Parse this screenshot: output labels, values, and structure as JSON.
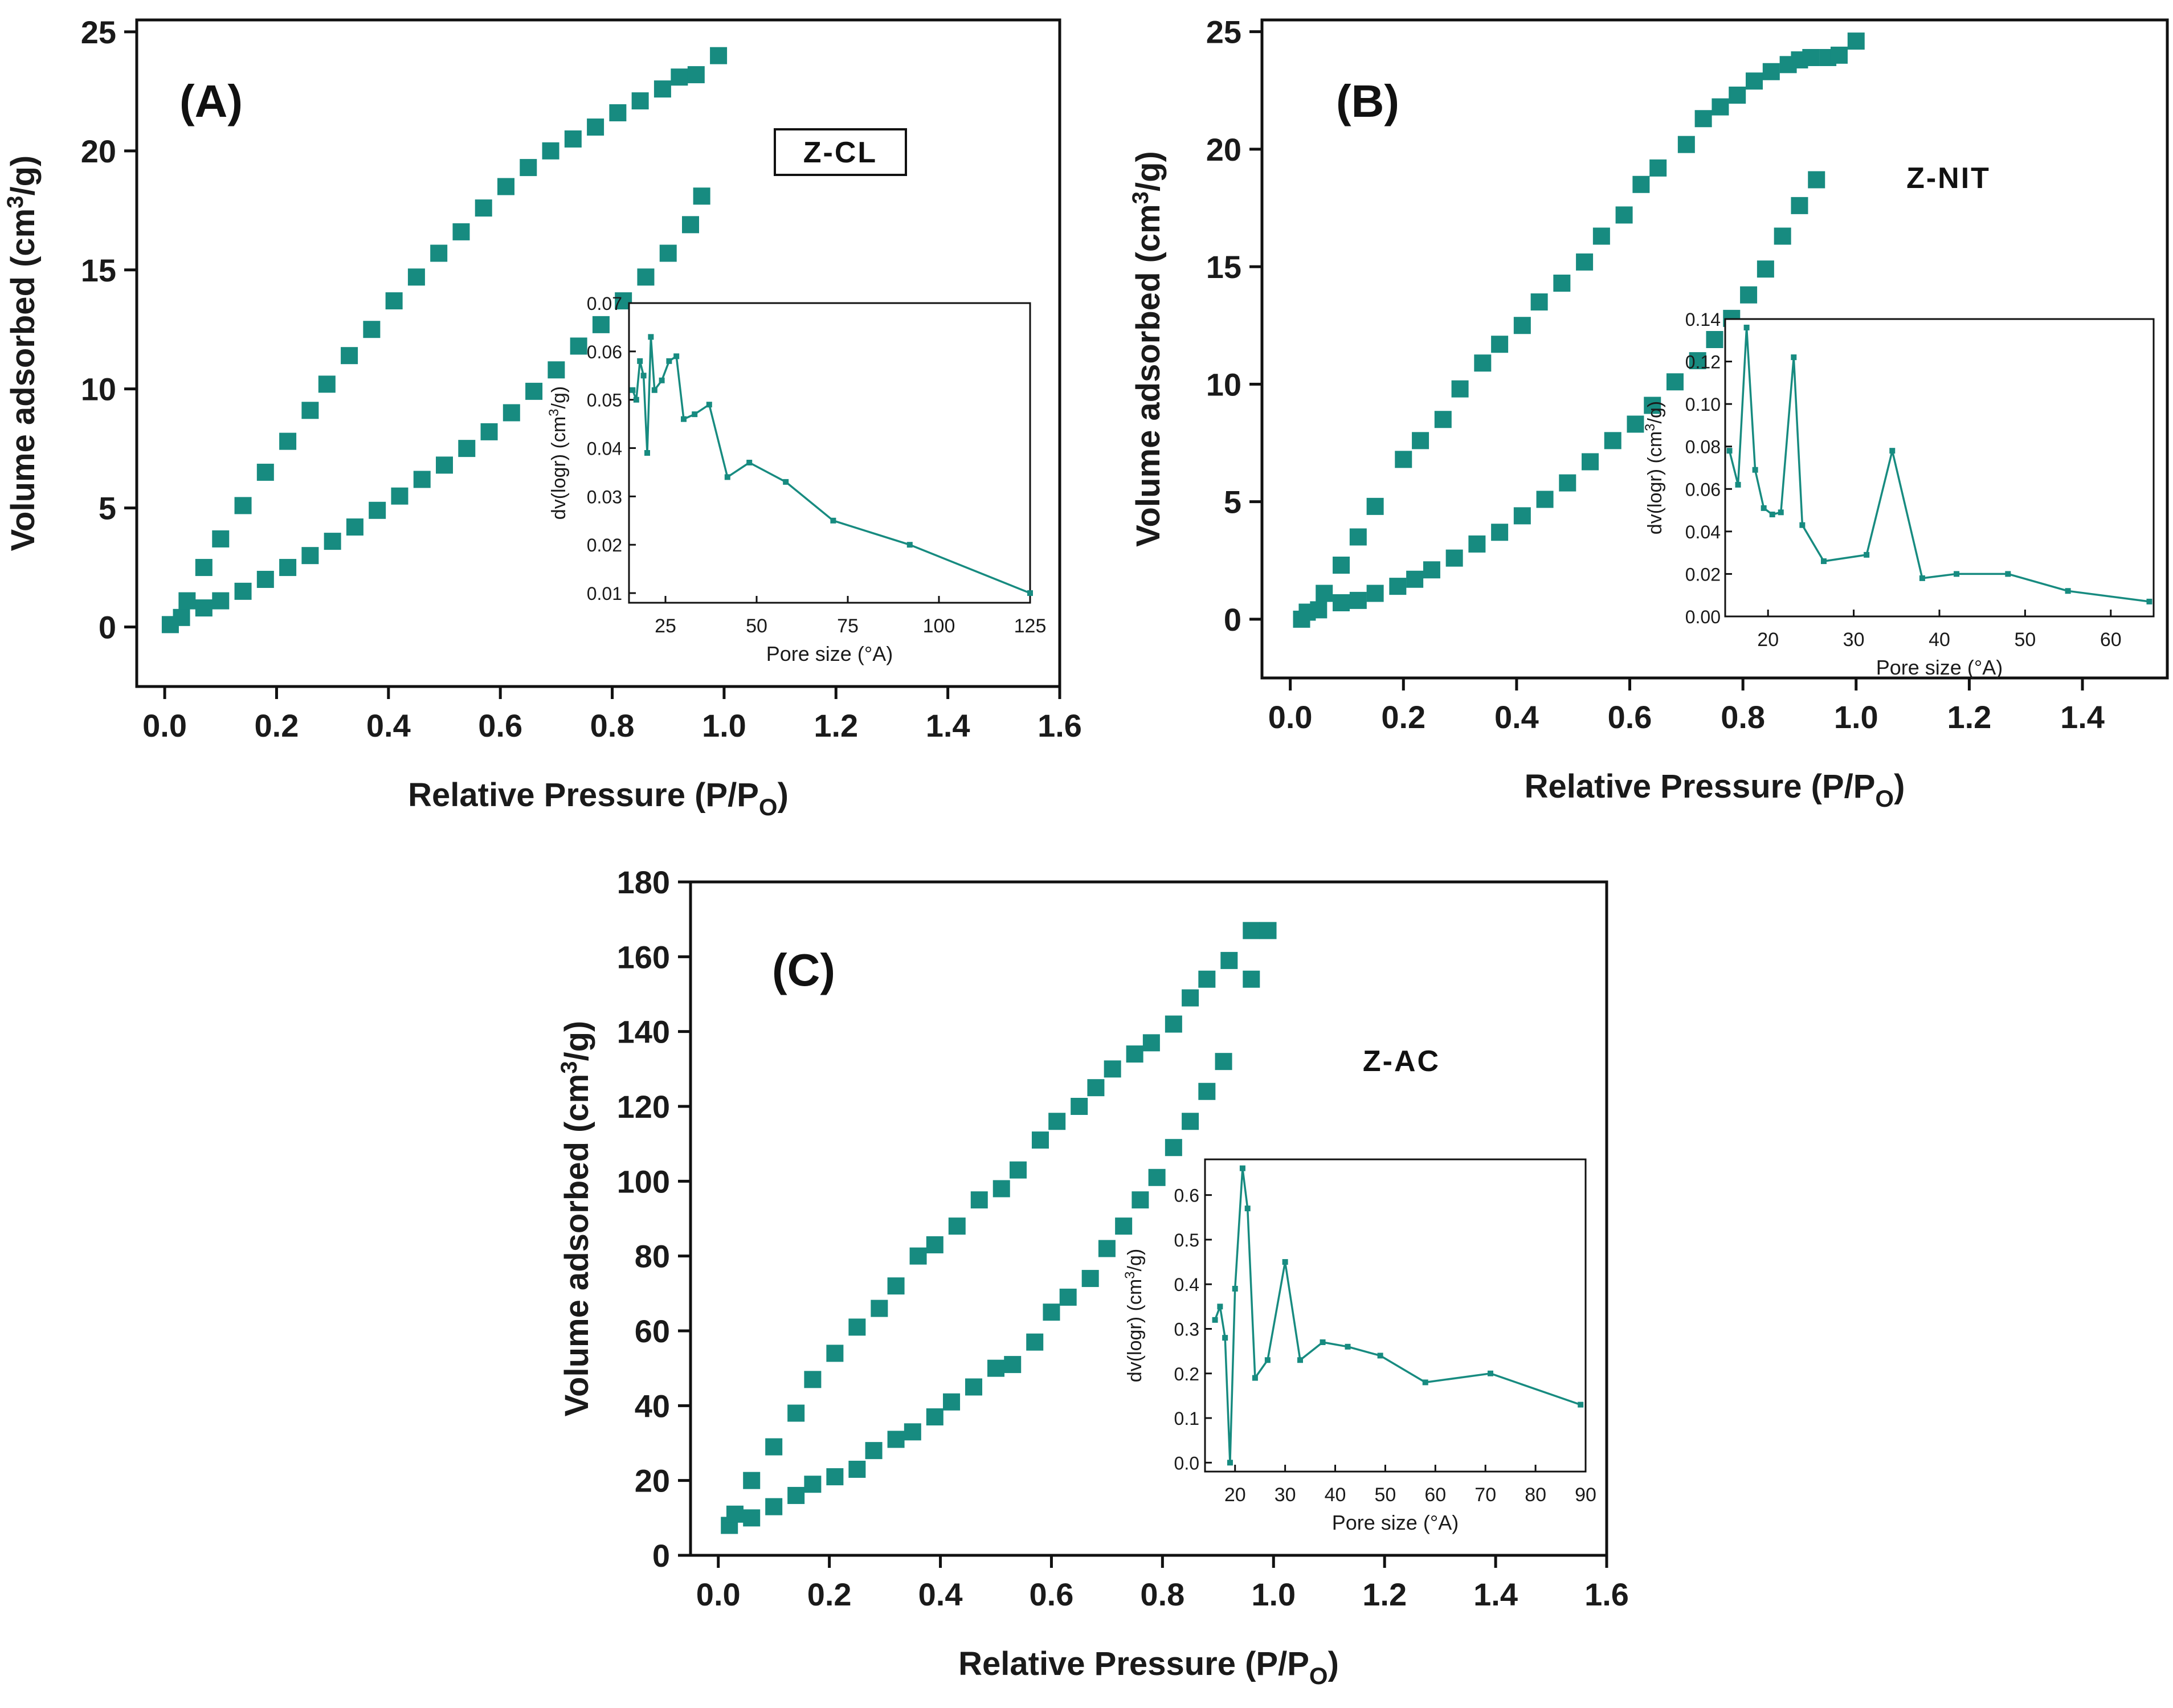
{
  "figure": {
    "panel_labels": [
      "(A)",
      "(B)",
      "(C)"
    ],
    "sample_labels": [
      "Z-CL",
      "Z-NIT",
      "Z-AC"
    ]
  },
  "chart_data": [
    {
      "type": "scatter",
      "panel": "(A)",
      "sample": "Z-CL",
      "xlabel": "Relative Pressure (P/P",
      "xlabel_sub": "O",
      "xlabel_tail": ")",
      "ylabel": "Volume adsorbed (cm",
      "ylabel_sup": "3",
      "ylabel_tail": "/g)",
      "xlim": [
        -0.05,
        1.6
      ],
      "ylim": [
        -2.5,
        25.5
      ],
      "xticks": [
        0.0,
        0.2,
        0.4,
        0.6,
        0.8,
        1.0,
        1.2,
        1.4,
        1.6
      ],
      "xtick_labels": [
        "0.0",
        "0.2",
        "0.4",
        "0.6",
        "0.8",
        "1.0",
        "1.2",
        "1.4",
        "1.6"
      ],
      "yticks": [
        0,
        5,
        10,
        15,
        20,
        25
      ],
      "ytick_labels": [
        "0",
        "5",
        "10",
        "15",
        "20",
        "25"
      ],
      "color": "#178b80",
      "series": [
        {
          "x": [
            0.01,
            0.03,
            0.07,
            0.1,
            0.14,
            0.18,
            0.22,
            0.26,
            0.3,
            0.34,
            0.38,
            0.42,
            0.46,
            0.5,
            0.54,
            0.58,
            0.62,
            0.66,
            0.7,
            0.74,
            0.78,
            0.82,
            0.86,
            0.9,
            0.94,
            0.96
          ],
          "y": [
            0.1,
            0.4,
            0.8,
            1.1,
            1.5,
            2.0,
            2.5,
            3.0,
            3.6,
            4.2,
            4.9,
            5.5,
            6.2,
            6.8,
            7.5,
            8.2,
            9.0,
            9.9,
            10.8,
            11.8,
            12.7,
            13.7,
            14.7,
            15.7,
            16.9,
            18.1
          ]
        },
        {
          "x": [
            0.04,
            0.07,
            0.1,
            0.14,
            0.18,
            0.22,
            0.26,
            0.29,
            0.33,
            0.37,
            0.41,
            0.45,
            0.49,
            0.53,
            0.57,
            0.61,
            0.65,
            0.69,
            0.73,
            0.77,
            0.81,
            0.85,
            0.89,
            0.92,
            0.95,
            0.99
          ],
          "y": [
            1.1,
            2.5,
            3.7,
            5.1,
            6.5,
            7.8,
            9.1,
            10.2,
            11.4,
            12.5,
            13.7,
            14.7,
            15.7,
            16.6,
            17.6,
            18.5,
            19.3,
            20.0,
            20.5,
            21.0,
            21.6,
            22.1,
            22.6,
            23.1,
            23.2,
            24.0
          ]
        }
      ],
      "inset": {
        "xlabel": "Pore size (",
        "xlabel_unit": "°A",
        "xlabel_tail": ")",
        "ylabel": "dv(logr) (cm",
        "ylabel_sup": "3",
        "ylabel_tail": "/g)",
        "xlim": [
          15,
          125
        ],
        "ylim": [
          0.008,
          0.07
        ],
        "xticks": [
          25,
          50,
          75,
          100,
          125
        ],
        "xtick_labels": [
          "25",
          "50",
          "75",
          "100",
          "125"
        ],
        "yticks": [
          0.01,
          0.02,
          0.03,
          0.04,
          0.05,
          0.06,
          0.07
        ],
        "ytick_labels": [
          "0.01",
          "0.02",
          "0.03",
          "0.04",
          "0.05",
          "0.06",
          "0.07"
        ],
        "x": [
          16,
          17,
          18,
          19,
          20,
          21,
          22,
          24,
          26,
          28,
          30,
          33,
          37,
          42,
          48,
          58,
          71,
          92,
          125
        ],
        "y": [
          0.052,
          0.05,
          0.058,
          0.055,
          0.039,
          0.063,
          0.052,
          0.054,
          0.058,
          0.059,
          0.046,
          0.047,
          0.049,
          0.034,
          0.037,
          0.033,
          0.025,
          0.02,
          0.01
        ]
      }
    },
    {
      "type": "scatter",
      "panel": "(B)",
      "sample": "Z-NIT",
      "xlabel": "Relative Pressure (P/P",
      "xlabel_sub": "O",
      "xlabel_tail": ")",
      "ylabel": "Volume adsorbed (cm",
      "ylabel_sup": "3",
      "ylabel_tail": "/g)",
      "xlim": [
        -0.05,
        1.55
      ],
      "ylim": [
        -2.5,
        25.5
      ],
      "xticks": [
        0.0,
        0.2,
        0.4,
        0.6,
        0.8,
        1.0,
        1.2,
        1.4
      ],
      "xtick_labels": [
        "0.0",
        "0.2",
        "0.4",
        "0.6",
        "0.8",
        "1.0",
        "1.2",
        "1.4"
      ],
      "yticks": [
        0,
        5,
        10,
        15,
        20,
        25
      ],
      "ytick_labels": [
        "0",
        "5",
        "10",
        "15",
        "20",
        "25"
      ],
      "color": "#178b80",
      "series": [
        {
          "x": [
            0.02,
            0.05,
            0.09,
            0.12,
            0.15,
            0.19,
            0.22,
            0.25,
            0.29,
            0.33,
            0.37,
            0.41,
            0.45,
            0.49,
            0.53,
            0.57,
            0.61,
            0.64,
            0.68,
            0.72,
            0.75,
            0.78,
            0.81,
            0.84,
            0.87,
            0.9,
            0.93
          ],
          "y": [
            0.0,
            0.4,
            0.7,
            0.8,
            1.1,
            1.4,
            1.7,
            2.1,
            2.6,
            3.2,
            3.7,
            4.4,
            5.1,
            5.8,
            6.7,
            7.6,
            8.3,
            9.1,
            10.1,
            11.0,
            11.9,
            12.8,
            13.8,
            14.9,
            16.3,
            17.6,
            18.7
          ]
        },
        {
          "x": [
            0.03,
            0.06,
            0.09,
            0.12,
            0.15,
            0.2,
            0.23,
            0.27,
            0.3,
            0.34,
            0.37,
            0.41,
            0.44,
            0.48,
            0.52,
            0.55,
            0.59,
            0.62,
            0.65,
            0.7,
            0.73,
            0.76,
            0.79,
            0.82,
            0.85,
            0.88,
            0.9,
            0.92,
            0.95,
            0.97,
            1.0
          ],
          "y": [
            0.3,
            1.1,
            2.3,
            3.5,
            4.8,
            6.8,
            7.6,
            8.5,
            9.8,
            10.9,
            11.7,
            12.5,
            13.5,
            14.3,
            15.2,
            16.3,
            17.2,
            18.5,
            19.2,
            20.2,
            21.3,
            21.8,
            22.3,
            22.9,
            23.3,
            23.6,
            23.8,
            23.9,
            23.9,
            24.0,
            24.6
          ]
        }
      ],
      "inset": {
        "xlabel": "Pore size (",
        "xlabel_unit": "°A",
        "xlabel_tail": ")",
        "ylabel": "dv(logr) (cm",
        "ylabel_sup": "3",
        "ylabel_tail": "/g)",
        "xlim": [
          15,
          65
        ],
        "ylim": [
          0,
          0.14
        ],
        "xticks": [
          20,
          30,
          40,
          50,
          60
        ],
        "xtick_labels": [
          "20",
          "30",
          "40",
          "50",
          "60"
        ],
        "yticks": [
          0.0,
          0.02,
          0.04,
          0.06,
          0.08,
          0.1,
          0.12,
          0.14
        ],
        "ytick_labels": [
          "0.00",
          "0.02",
          "0.04",
          "0.06",
          "0.08",
          "0.10",
          "0.12",
          "0.14"
        ],
        "x": [
          15.5,
          16.5,
          17.5,
          18.5,
          19.5,
          20.5,
          21.5,
          23.0,
          24.0,
          26.5,
          31.5,
          34.5,
          38.0,
          42.0,
          48.0,
          55.0,
          64.5
        ],
        "y": [
          0.078,
          0.062,
          0.136,
          0.069,
          0.051,
          0.048,
          0.049,
          0.122,
          0.043,
          0.026,
          0.029,
          0.078,
          0.018,
          0.02,
          0.02,
          0.012,
          0.007
        ]
      }
    },
    {
      "type": "scatter",
      "panel": "(C)",
      "sample": "Z-AC",
      "xlabel": "Relative Pressure (P/P",
      "xlabel_sub": "O",
      "xlabel_tail": ")",
      "ylabel": "Volume adsorbed (cm",
      "ylabel_sup": "3",
      "ylabel_tail": "/g)",
      "xlim": [
        -0.05,
        1.6
      ],
      "ylim": [
        0,
        180
      ],
      "xticks": [
        0.0,
        0.2,
        0.4,
        0.6,
        0.8,
        1.0,
        1.2,
        1.4,
        1.6
      ],
      "xtick_labels": [
        "0.0",
        "0.2",
        "0.4",
        "0.6",
        "0.8",
        "1.0",
        "1.2",
        "1.4",
        "1.6"
      ],
      "yticks": [
        0,
        20,
        40,
        60,
        80,
        100,
        120,
        140,
        160,
        180
      ],
      "ytick_labels": [
        "0",
        "20",
        "40",
        "60",
        "80",
        "100",
        "120",
        "140",
        "160",
        "180"
      ],
      "color": "#178b80",
      "series": [
        {
          "x": [
            0.02,
            0.06,
            0.1,
            0.14,
            0.17,
            0.21,
            0.25,
            0.28,
            0.32,
            0.35,
            0.39,
            0.42,
            0.46,
            0.5,
            0.53,
            0.57,
            0.6,
            0.63,
            0.67,
            0.7,
            0.73,
            0.76,
            0.79,
            0.82,
            0.85,
            0.88,
            0.91,
            0.96
          ],
          "y": [
            8,
            10,
            13,
            16,
            19,
            21,
            23,
            28,
            31,
            33,
            37,
            41,
            45,
            50,
            51,
            57,
            65,
            69,
            74,
            82,
            88,
            95,
            101,
            109,
            116,
            124,
            132,
            154
          ]
        },
        {
          "x": [
            0.03,
            0.06,
            0.1,
            0.14,
            0.17,
            0.21,
            0.25,
            0.29,
            0.32,
            0.36,
            0.39,
            0.43,
            0.47,
            0.51,
            0.54,
            0.58,
            0.61,
            0.65,
            0.68,
            0.71,
            0.75,
            0.78,
            0.82,
            0.85,
            0.88,
            0.92,
            0.96,
            0.99
          ],
          "y": [
            11,
            20,
            29,
            38,
            47,
            54,
            61,
            66,
            72,
            80,
            83,
            88,
            95,
            98,
            103,
            111,
            116,
            120,
            125,
            130,
            134,
            137,
            142,
            149,
            154,
            159,
            167,
            167
          ]
        }
      ],
      "inset": {
        "xlabel": "Pore size (",
        "xlabel_unit": "°A",
        "xlabel_tail": ")",
        "ylabel": "dv(logr) (cm",
        "ylabel_sup": "3",
        "ylabel_tail": "/g)",
        "xlim": [
          14,
          90
        ],
        "ylim": [
          -0.02,
          0.68
        ],
        "xticks": [
          20,
          30,
          40,
          50,
          60,
          70,
          80,
          90
        ],
        "xtick_labels": [
          "20",
          "30",
          "40",
          "50",
          "60",
          "70",
          "80",
          "90"
        ],
        "yticks": [
          0.0,
          0.1,
          0.2,
          0.3,
          0.4,
          0.5,
          0.6
        ],
        "ytick_labels": [
          "0.0",
          "0.1",
          "0.2",
          "0.3",
          "0.4",
          "0.5",
          "0.6"
        ],
        "x": [
          16,
          17,
          18,
          19,
          20,
          21.5,
          22.5,
          24,
          26.5,
          30,
          33,
          37.5,
          42.5,
          49,
          58,
          71,
          89
        ],
        "y": [
          0.32,
          0.35,
          0.28,
          0.0,
          0.39,
          0.66,
          0.57,
          0.19,
          0.23,
          0.45,
          0.23,
          0.27,
          0.26,
          0.24,
          0.18,
          0.2,
          0.13
        ]
      }
    }
  ]
}
